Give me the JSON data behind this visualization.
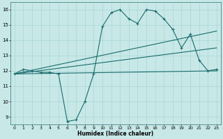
{
  "xlabel": "Humidex (Indice chaleur)",
  "bg_color": "#c8e8e8",
  "grid_color": "#a8d4d4",
  "line_color": "#1a6b6b",
  "xlim": [
    -0.5,
    23.5
  ],
  "ylim": [
    8.5,
    16.5
  ],
  "xticks": [
    0,
    1,
    2,
    3,
    4,
    5,
    6,
    7,
    8,
    9,
    10,
    11,
    12,
    13,
    14,
    15,
    16,
    17,
    18,
    19,
    20,
    21,
    22,
    23
  ],
  "yticks": [
    9,
    10,
    11,
    12,
    13,
    14,
    15,
    16
  ],
  "line1_x": [
    0,
    1,
    2,
    3,
    4,
    5,
    6,
    7,
    8,
    9,
    10,
    11,
    12,
    13,
    14,
    15,
    16,
    17,
    18,
    19,
    20,
    21,
    22,
    23
  ],
  "line1_y": [
    11.8,
    12.1,
    12.0,
    11.9,
    11.9,
    11.8,
    8.7,
    8.8,
    10.0,
    11.8,
    14.9,
    15.8,
    16.0,
    15.4,
    15.1,
    16.0,
    15.9,
    15.4,
    14.7,
    13.5,
    14.4,
    12.7,
    12.0,
    12.1
  ],
  "line2_x": [
    0,
    23
  ],
  "line2_y": [
    11.8,
    12.0
  ],
  "line3_x": [
    0,
    23
  ],
  "line3_y": [
    11.8,
    13.5
  ],
  "line4_x": [
    0,
    23
  ],
  "line4_y": [
    11.8,
    14.6
  ]
}
